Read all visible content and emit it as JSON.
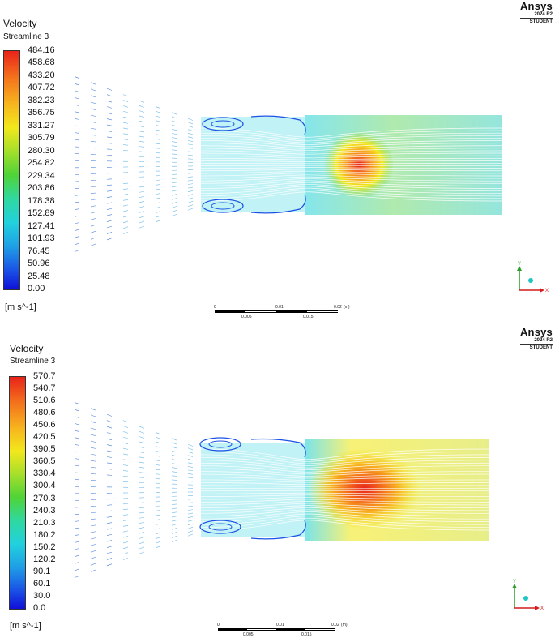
{
  "brand": {
    "name": "Ansys",
    "version": "2024 R2",
    "edition": "STUDENT"
  },
  "panels": [
    {
      "title": "Velocity",
      "subtitle": "Streamline 3",
      "units": "[m s^-1]",
      "ticks": [
        "484.16",
        "458.68",
        "433.20",
        "407.72",
        "382.23",
        "356.75",
        "331.27",
        "305.79",
        "280.30",
        "254.82",
        "229.34",
        "203.86",
        "178.38",
        "152.89",
        "127.41",
        "101.93",
        "76.45",
        "50.96",
        "25.48",
        "0.00"
      ],
      "scale_labels": {
        "start": "0",
        "mid": "0.01",
        "end": "0.02",
        "unit": "(m)",
        "q1": "0.005",
        "q3": "0.015"
      },
      "axes": {
        "y": "Y",
        "x": "X"
      }
    },
    {
      "title": "Velocity",
      "subtitle": "Streamline 3",
      "units": "[m s^-1]",
      "ticks": [
        "570.7",
        "540.7",
        "510.6",
        "480.6",
        "450.6",
        "420.5",
        "390.5",
        "360.5",
        "330.4",
        "300.4",
        "270.3",
        "240.3",
        "210.3",
        "180.2",
        "150.2",
        "120.2",
        "90.1",
        "60.1",
        "30.0",
        "0.0"
      ],
      "scale_labels": {
        "start": "0",
        "mid": "0.01",
        "end": "0.02",
        "unit": "(m)",
        "q1": "0.005",
        "q3": "0.015"
      },
      "axes": {
        "y": "Y",
        "x": "X"
      }
    }
  ],
  "colors": {
    "red": "#e8231a",
    "orange": "#f7931e",
    "yellow": "#f2e81c",
    "green": "#4fd337",
    "cyan": "#22d1dd",
    "blue": "#1a52e6",
    "navy": "#1010d8"
  },
  "icons": [
    "ansys-logo",
    "scale-bar",
    "axis-triad-icon"
  ]
}
